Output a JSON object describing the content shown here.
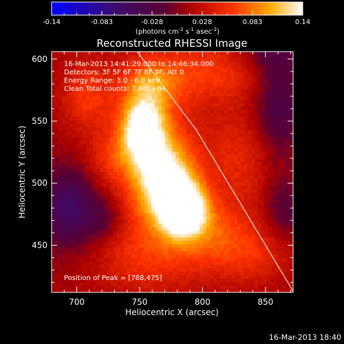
{
  "chart_data": {
    "type": "heatmap",
    "title": "Reconstructed RHESSI Image",
    "xlabel": "Heliocentric X (arcsec)",
    "ylabel": "Heliocentric Y (arcsec)",
    "xlim": [
      680,
      872
    ],
    "ylim": [
      412,
      606
    ],
    "x_ticks": [
      700,
      750,
      800,
      850
    ],
    "y_ticks": [
      450,
      500,
      550,
      600
    ],
    "colorbar": {
      "min": -0.14,
      "max": 0.14,
      "ticks": [
        "-0.14",
        "-0.083",
        "-0.028",
        "0.028",
        "0.083",
        "0.14"
      ],
      "label_main": "(photons cm",
      "label_exp1": "-2",
      "label_mid": " s",
      "label_exp2": "-1",
      "label_end": " asec",
      "label_exp3": "-2",
      "label_close": ")"
    },
    "annotations": [
      "16-Mar-2013 14:41:29.000 to 14:46:34.000",
      "Detectors: 3F 5F 6F 7F 8F 9F, Att 0",
      "Energy Range: 3.0 - 6.0 keV",
      "Clean     Total counts: 7.46E+04"
    ],
    "peak_label": "Position of Peak = [788,475]",
    "peak": [
      788,
      475
    ],
    "limb_line": [
      [
        748,
        606
      ],
      [
        795,
        543
      ],
      [
        872,
        413
      ]
    ],
    "blobs": [
      {
        "x": 786,
        "y": 478,
        "sx": 13,
        "sy": 15,
        "amp": 0.14
      },
      {
        "x": 772,
        "y": 500,
        "sx": 16,
        "sy": 22,
        "amp": 0.105
      },
      {
        "x": 752,
        "y": 543,
        "sx": 12,
        "sy": 18,
        "amp": 0.115
      },
      {
        "x": 760,
        "y": 522,
        "sx": 22,
        "sy": 45,
        "amp": 0.06
      },
      {
        "x": 758,
        "y": 580,
        "sx": 16,
        "sy": 14,
        "amp": 0.05
      },
      {
        "x": 805,
        "y": 590,
        "sx": 30,
        "sy": 18,
        "amp": 0.045
      },
      {
        "x": 708,
        "y": 570,
        "sx": 14,
        "sy": 20,
        "amp": 0.045
      },
      {
        "x": 726,
        "y": 520,
        "sx": 14,
        "sy": 14,
        "amp": 0.03
      },
      {
        "x": 812,
        "y": 455,
        "sx": 24,
        "sy": 20,
        "amp": 0.05
      },
      {
        "x": 830,
        "y": 520,
        "sx": 22,
        "sy": 30,
        "amp": 0.035
      },
      {
        "x": 755,
        "y": 440,
        "sx": 30,
        "sy": 20,
        "amp": 0.035
      },
      {
        "x": 845,
        "y": 440,
        "sx": 20,
        "sy": 16,
        "amp": 0.025
      },
      {
        "x": 693,
        "y": 480,
        "sx": 16,
        "sy": 22,
        "amp": -0.07
      },
      {
        "x": 722,
        "y": 470,
        "sx": 10,
        "sy": 12,
        "amp": -0.03
      },
      {
        "x": 860,
        "y": 560,
        "sx": 14,
        "sy": 30,
        "amp": -0.05
      },
      {
        "x": 865,
        "y": 480,
        "sx": 12,
        "sy": 18,
        "amp": -0.035
      },
      {
        "x": 853,
        "y": 604,
        "sx": 18,
        "sy": 10,
        "amp": -0.03
      }
    ],
    "background": 0.012
  },
  "footer": "16-Mar-2013 18:40",
  "colors": {
    "background": "#000000",
    "foreground": "#ffffff"
  }
}
